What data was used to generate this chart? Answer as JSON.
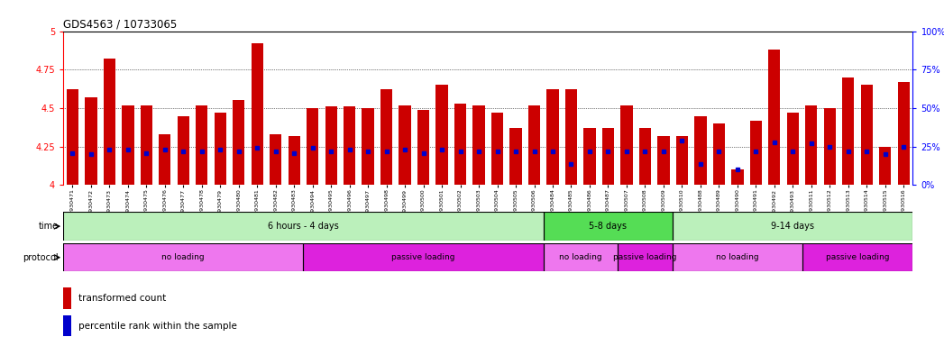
{
  "title": "GDS4563 / 10733065",
  "xlabels": [
    "GSM930471",
    "GSM930472",
    "GSM930473",
    "GSM930474",
    "GSM930475",
    "GSM930476",
    "GSM930477",
    "GSM930478",
    "GSM930479",
    "GSM930480",
    "GSM930481",
    "GSM930482",
    "GSM930483",
    "GSM930494",
    "GSM930495",
    "GSM930496",
    "GSM930497",
    "GSM930498",
    "GSM930499",
    "GSM930500",
    "GSM930501",
    "GSM930502",
    "GSM930503",
    "GSM930504",
    "GSM930505",
    "GSM930506",
    "GSM930484",
    "GSM930485",
    "GSM930486",
    "GSM930487",
    "GSM930507",
    "GSM930508",
    "GSM930509",
    "GSM930510",
    "GSM930488",
    "GSM930489",
    "GSM930490",
    "GSM930491",
    "GSM930492",
    "GSM930493",
    "GSM930511",
    "GSM930512",
    "GSM930513",
    "GSM930514",
    "GSM930515",
    "GSM930516"
  ],
  "bar_heights": [
    4.62,
    4.57,
    4.82,
    4.52,
    4.52,
    4.33,
    4.45,
    4.52,
    4.47,
    4.55,
    4.92,
    4.33,
    4.32,
    4.5,
    4.51,
    4.51,
    4.5,
    4.62,
    4.52,
    4.49,
    4.65,
    4.53,
    4.52,
    4.47,
    4.37,
    4.52,
    4.62,
    4.62,
    4.37,
    4.37,
    4.52,
    4.37,
    4.32,
    4.32,
    4.45,
    4.4,
    4.1,
    4.42,
    4.88,
    4.47,
    4.52,
    4.5,
    4.7,
    4.65,
    4.25,
    4.67
  ],
  "percentile_values": [
    21,
    20,
    23,
    23,
    21,
    23,
    22,
    22,
    23,
    22,
    24,
    22,
    21,
    24,
    22,
    23,
    22,
    22,
    23,
    21,
    23,
    22,
    22,
    22,
    22,
    22,
    22,
    14,
    22,
    22,
    22,
    22,
    22,
    29,
    14,
    22,
    10,
    22,
    28,
    22,
    27,
    25,
    22,
    22,
    20,
    25
  ],
  "ylim_left": [
    4.0,
    5.0
  ],
  "ylim_right": [
    0,
    100
  ],
  "yticks_left": [
    4.0,
    4.25,
    4.5,
    4.75,
    5.0
  ],
  "yticks_right": [
    0,
    25,
    50,
    75,
    100
  ],
  "bar_color": "#CC0000",
  "dot_color": "#0000CC",
  "time_groups": [
    {
      "label": "6 hours - 4 days",
      "start": 0,
      "end": 26,
      "color": "#bbf0bb"
    },
    {
      "label": "5-8 days",
      "start": 26,
      "end": 33,
      "color": "#55dd55"
    },
    {
      "label": "9-14 days",
      "start": 33,
      "end": 46,
      "color": "#bbf0bb"
    }
  ],
  "protocol_groups": [
    {
      "label": "no loading",
      "start": 0,
      "end": 13,
      "color": "#ee77ee"
    },
    {
      "label": "passive loading",
      "start": 13,
      "end": 26,
      "color": "#dd22dd"
    },
    {
      "label": "no loading",
      "start": 26,
      "end": 30,
      "color": "#ee77ee"
    },
    {
      "label": "passive loading",
      "start": 30,
      "end": 33,
      "color": "#dd22dd"
    },
    {
      "label": "no loading",
      "start": 33,
      "end": 40,
      "color": "#ee77ee"
    },
    {
      "label": "passive loading",
      "start": 40,
      "end": 46,
      "color": "#dd22dd"
    }
  ],
  "legend_tc": "transformed count",
  "legend_pr": "percentile rank within the sample",
  "tc_color": "#CC0000",
  "pr_color": "#0000CC"
}
